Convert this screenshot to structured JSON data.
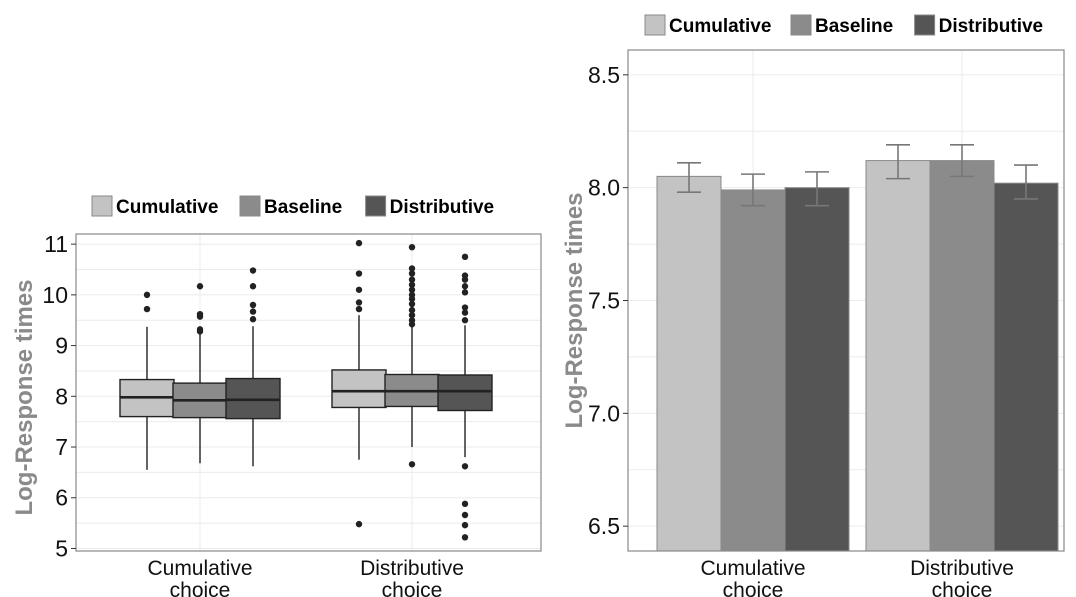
{
  "chart_data": [
    {
      "type": "box",
      "ylabel": "Log-Response times",
      "ylim": [
        4.95,
        11.2
      ],
      "yticks": [
        "5",
        "6",
        "7",
        "8",
        "9",
        "10",
        "11"
      ],
      "categories": [
        "Cumulative\nchoice",
        "Distributive\nchoice"
      ],
      "legend": {
        "position": "top",
        "entries": [
          "Cumulative",
          "Baseline",
          "Distributive"
        ]
      },
      "grid": true,
      "series": [
        {
          "name": "Cumulative",
          "color": "#c3c3c3",
          "boxes": [
            {
              "whisker_low": 6.55,
              "q1": 7.6,
              "median": 7.98,
              "q3": 8.33,
              "whisker_high": 9.37,
              "outliers": [
                9.72,
                10.0
              ]
            },
            {
              "whisker_low": 6.75,
              "q1": 7.78,
              "median": 8.1,
              "q3": 8.52,
              "whisker_high": 9.6,
              "outliers": [
                5.48,
                9.72,
                9.85,
                10.1,
                10.42,
                11.02
              ]
            }
          ]
        },
        {
          "name": "Baseline",
          "color": "#8b8b8b",
          "boxes": [
            {
              "whisker_low": 6.68,
              "q1": 7.58,
              "median": 7.92,
              "q3": 8.26,
              "whisker_high": 9.22,
              "outliers": [
                9.28,
                9.32,
                9.57,
                9.62,
                10.17
              ]
            },
            {
              "whisker_low": 7.0,
              "q1": 7.8,
              "median": 8.1,
              "q3": 8.43,
              "whisker_high": 9.38,
              "outliers": [
                6.66,
                9.42,
                9.5,
                9.6,
                9.7,
                9.82,
                9.92,
                10.0,
                10.1,
                10.2,
                10.3,
                10.42,
                10.52,
                10.94
              ]
            }
          ]
        },
        {
          "name": "Distributive",
          "color": "#555555",
          "boxes": [
            {
              "whisker_low": 6.62,
              "q1": 7.56,
              "median": 7.93,
              "q3": 8.35,
              "whisker_high": 9.38,
              "outliers": [
                9.52,
                9.67,
                9.8,
                10.17,
                10.48
              ]
            },
            {
              "whisker_low": 6.8,
              "q1": 7.72,
              "median": 8.1,
              "q3": 8.42,
              "whisker_high": 9.4,
              "outliers": [
                5.22,
                5.46,
                5.66,
                5.88,
                6.62,
                9.5,
                9.65,
                9.75,
                10.05,
                10.17,
                10.3,
                10.38,
                10.75
              ]
            }
          ]
        }
      ]
    },
    {
      "type": "bar",
      "ylabel": "Log-Response times",
      "ylim": [
        6.39,
        8.61
      ],
      "yticks": [
        "6.5",
        "7.0",
        "7.5",
        "8.0",
        "8.5"
      ],
      "categories": [
        "Cumulative\nchoice",
        "Distributive\nchoice"
      ],
      "legend": {
        "position": "top",
        "entries": [
          "Cumulative",
          "Baseline",
          "Distributive"
        ]
      },
      "grid": true,
      "series": [
        {
          "name": "Cumulative",
          "color": "#c3c3c3",
          "values": [
            8.05,
            8.12
          ],
          "error_low": [
            7.98,
            8.04
          ],
          "error_high": [
            8.11,
            8.19
          ]
        },
        {
          "name": "Baseline",
          "color": "#8b8b8b",
          "values": [
            7.99,
            8.12
          ],
          "error_low": [
            7.92,
            8.05
          ],
          "error_high": [
            8.06,
            8.19
          ]
        },
        {
          "name": "Distributive",
          "color": "#555555",
          "values": [
            8.0,
            8.02
          ],
          "error_low": [
            7.92,
            7.95
          ],
          "error_high": [
            8.07,
            8.1
          ]
        }
      ]
    }
  ]
}
